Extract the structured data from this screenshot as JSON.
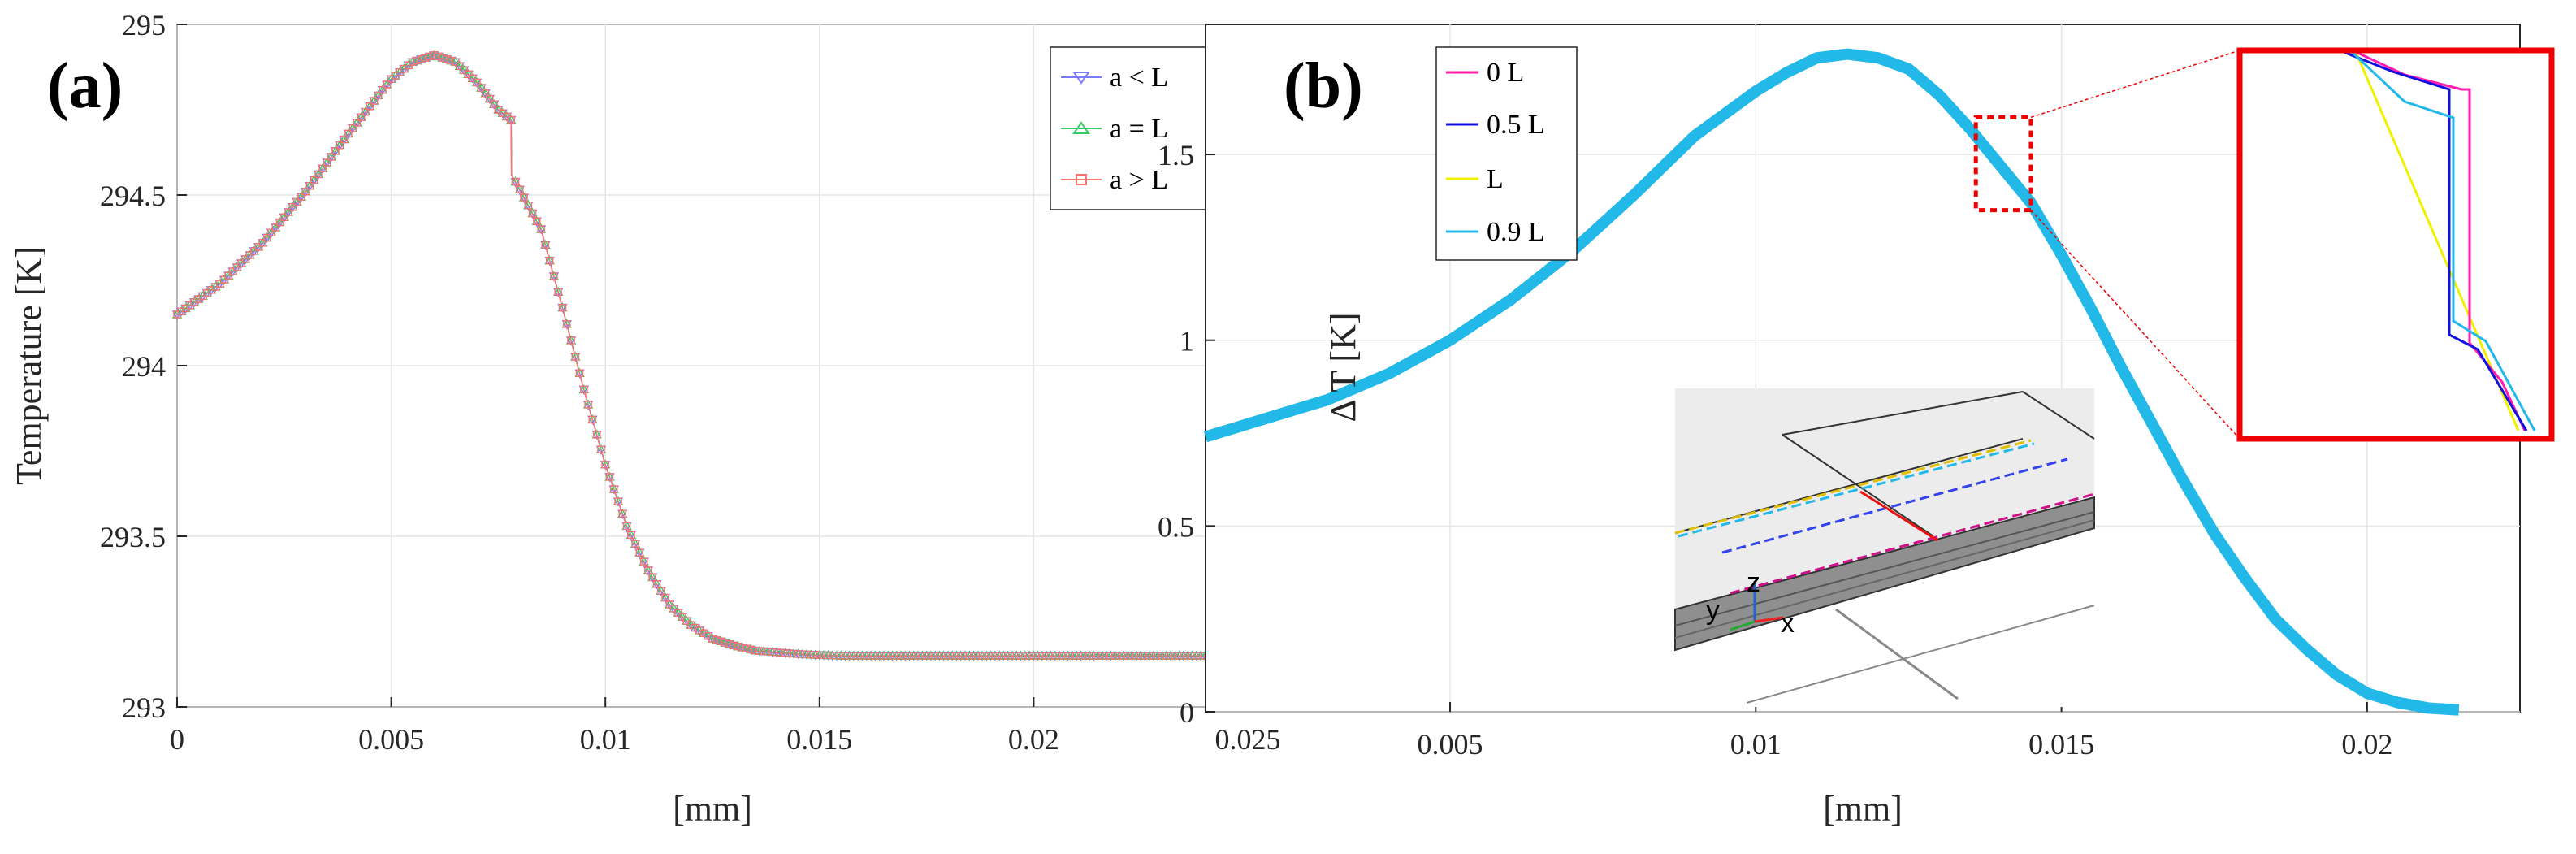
{
  "chart_data": [
    {
      "panel_label": "(a)",
      "type": "line",
      "xlabel": "[mm]",
      "ylabel": "Temperature [K]",
      "xlim": [
        0,
        0.025
      ],
      "ylim": [
        293,
        295
      ],
      "xticks": [
        0,
        0.005,
        0.01,
        0.015,
        0.02,
        0.025
      ],
      "xtick_labels": [
        "0",
        "0.005",
        "0.01",
        "0.015",
        "0.02",
        "0.025"
      ],
      "yticks": [
        293,
        293.5,
        294,
        294.5,
        295
      ],
      "ytick_labels": [
        "293",
        "293.5",
        "294",
        "294.5",
        "295"
      ],
      "grid": true,
      "legend_position": "top-right",
      "series": [
        {
          "name": "a < L",
          "color": "#7b7bff",
          "marker": "triangle-down"
        },
        {
          "name": "a = L",
          "color": "#33cc66",
          "marker": "triangle-up"
        },
        {
          "name": "a > L",
          "color": "#ff6f6f",
          "marker": "square"
        }
      ],
      "curve": {
        "x": [
          0,
          0.001,
          0.002,
          0.003,
          0.004,
          0.005,
          0.0055,
          0.006,
          0.0065,
          0.007,
          0.0075,
          0.0078,
          0.00781,
          0.0085,
          0.009,
          0.0095,
          0.01,
          0.0105,
          0.011,
          0.0115,
          0.012,
          0.0125,
          0.013,
          0.0135,
          0.014,
          0.0145,
          0.015,
          0.0155,
          0.016,
          0.017,
          0.018,
          0.019,
          0.02,
          0.021,
          0.022,
          0.023,
          0.024,
          0.025
        ],
        "y": [
          294.15,
          294.24,
          294.36,
          294.51,
          294.68,
          294.84,
          294.89,
          294.91,
          294.89,
          294.83,
          294.75,
          294.72,
          294.56,
          294.4,
          294.17,
          293.93,
          293.71,
          293.53,
          293.4,
          293.3,
          293.24,
          293.2,
          293.18,
          293.165,
          293.16,
          293.155,
          293.152,
          293.15,
          293.15,
          293.15,
          293.15,
          293.15,
          293.15,
          293.15,
          293.15,
          293.15,
          293.15,
          293.15
        ]
      }
    },
    {
      "panel_label": "(b)",
      "type": "line",
      "xlabel": "[mm]",
      "ylabel": "Δ T [K]",
      "xlim": [
        0.001,
        0.0225
      ],
      "ylim": [
        0,
        1.85
      ],
      "xticks": [
        0.005,
        0.01,
        0.015,
        0.02
      ],
      "xtick_labels": [
        "0.005",
        "0.01",
        "0.015",
        "0.02"
      ],
      "yticks": [
        0,
        0.5,
        1,
        1.5
      ],
      "ytick_labels": [
        "0",
        "0.5",
        "1",
        "1.5"
      ],
      "grid": true,
      "legend_position": "top-left",
      "series": [
        {
          "name": "0 L",
          "color": "#ff1cae"
        },
        {
          "name": "0.5 L",
          "color": "#1010e0"
        },
        {
          "name": "L",
          "color": "#f0f000"
        },
        {
          "name": "0.9 L",
          "color": "#22b8e8"
        }
      ],
      "curve": {
        "x": [
          0.001,
          0.002,
          0.003,
          0.004,
          0.005,
          0.006,
          0.007,
          0.008,
          0.009,
          0.01,
          0.0105,
          0.011,
          0.0115,
          0.012,
          0.0125,
          0.013,
          0.0135,
          0.014,
          0.0145,
          0.015,
          0.0155,
          0.016,
          0.0165,
          0.017,
          0.0175,
          0.018,
          0.0185,
          0.019,
          0.0195,
          0.02,
          0.0205,
          0.021,
          0.0215
        ],
        "y": [
          0.74,
          0.79,
          0.84,
          0.91,
          1.0,
          1.11,
          1.24,
          1.39,
          1.55,
          1.67,
          1.72,
          1.76,
          1.77,
          1.76,
          1.73,
          1.66,
          1.57,
          1.47,
          1.37,
          1.23,
          1.08,
          0.92,
          0.77,
          0.62,
          0.48,
          0.36,
          0.25,
          0.17,
          0.1,
          0.05,
          0.025,
          0.01,
          0.005
        ]
      },
      "zoom_inset": {
        "source_x_range": [
          0.0136,
          0.0145
        ],
        "source_y_range": [
          1.35,
          1.6
        ]
      },
      "inset_3d_axis_labels": [
        "z",
        "y",
        "x"
      ]
    }
  ]
}
